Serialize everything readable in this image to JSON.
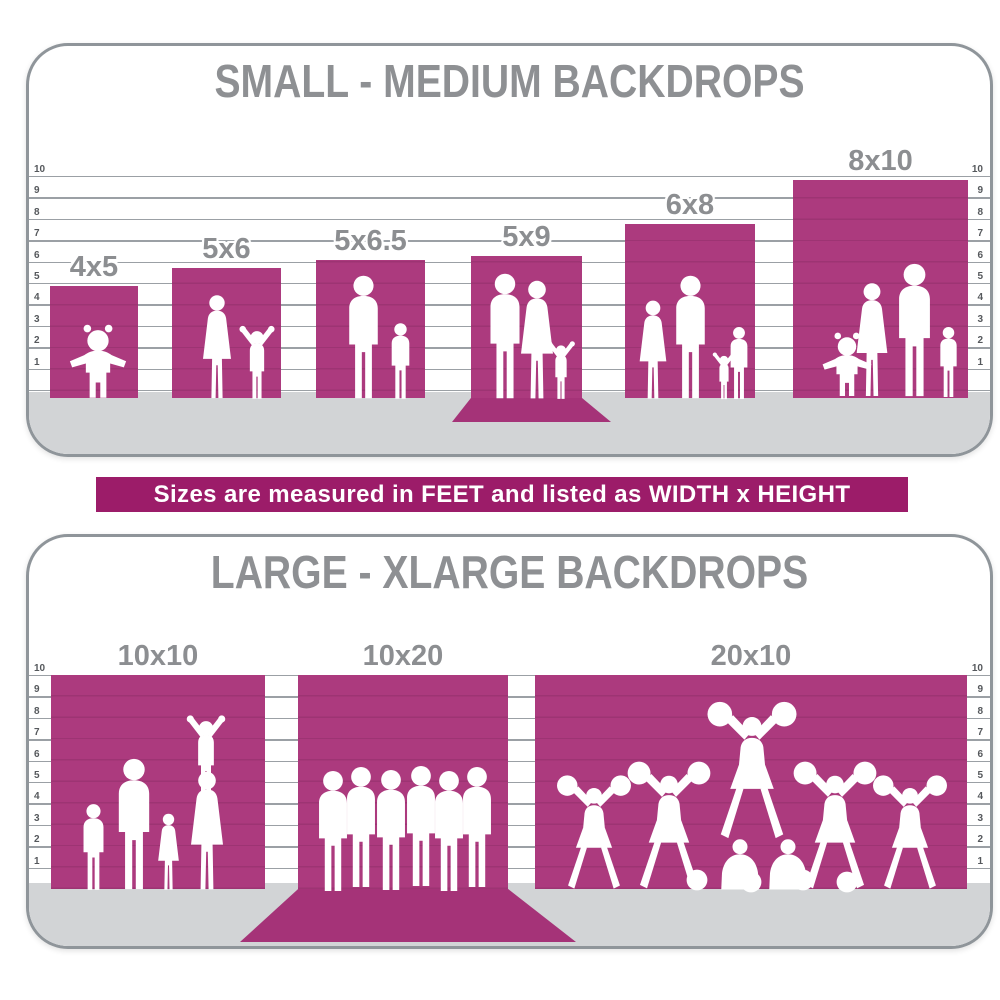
{
  "top_panel": {
    "title": "SMALL - MEDIUM BACKDROPS",
    "backdrops": [
      {
        "label": "4x5"
      },
      {
        "label": "5x6"
      },
      {
        "label": "5x6.5"
      },
      {
        "label": "5x9"
      },
      {
        "label": "6x8"
      },
      {
        "label": "8x10"
      }
    ]
  },
  "banner": {
    "text": "Sizes are measured in FEET and listed as WIDTH x HEIGHT"
  },
  "bottom_panel": {
    "title": "LARGE - XLARGE BACKDROPS",
    "backdrops": [
      {
        "label": "10x10"
      },
      {
        "label": "10x20"
      },
      {
        "label": "20x10"
      }
    ]
  },
  "ruler": {
    "numbers": [
      "10",
      "9",
      "8",
      "7",
      "6",
      "5",
      "4",
      "3",
      "2",
      "1"
    ]
  },
  "colors": {
    "backdrop_magenta": "#AC3A7E",
    "sweep_magenta": "#A53378",
    "banner_magenta": "#9C1C69",
    "title_gray": "#8E9093",
    "label_gray": "#8C8E91",
    "floor_gray": "#D2D4D6",
    "border_gray": "#8F959A",
    "ruler_number_gray": "#55585C",
    "silhouette_white": "#FFFFFF"
  }
}
